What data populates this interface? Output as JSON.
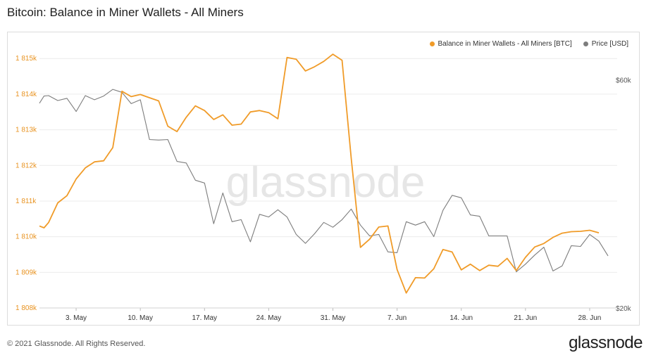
{
  "title": "Bitcoin: Balance in Miner Wallets - All Miners",
  "footer": {
    "copyright": "© 2021 Glassnode. All Rights Reserved.",
    "logo": "glassnode"
  },
  "watermark": "glassnode",
  "colors": {
    "balance": "#f09b28",
    "price": "#7d7d7d",
    "grid": "#ececec"
  },
  "chart_data": {
    "type": "line",
    "legend_position": "top-right",
    "grid": true,
    "x_axis": {
      "start": "2021-04-29",
      "end": "2021-07-01",
      "ticks": [
        "3. May",
        "10. May",
        "17. May",
        "24. May",
        "31. May",
        "7. Jun",
        "14. Jun",
        "21. Jun",
        "28. Jun"
      ],
      "tick_dates": [
        "2021-05-03",
        "2021-05-10",
        "2021-05-17",
        "2021-05-24",
        "2021-05-31",
        "2021-06-07",
        "2021-06-14",
        "2021-06-21",
        "2021-06-28"
      ]
    },
    "y_left": {
      "ylim": [
        1808000,
        1815300
      ],
      "ticks": [
        "1 808k",
        "1 809k",
        "1 810k",
        "1 811k",
        "1 812k",
        "1 813k",
        "1 814k",
        "1 815k"
      ],
      "tick_values": [
        1808000,
        1809000,
        1810000,
        1811000,
        1812000,
        1813000,
        1814000,
        1815000
      ]
    },
    "y_right": {
      "scale": "log",
      "ylim": [
        20000,
        70000
      ],
      "ticks": [
        "$20k",
        "$60k"
      ],
      "tick_values": [
        20000,
        60000
      ]
    },
    "series": [
      {
        "name": "Balance in Miner Wallets - All Miners [BTC]",
        "axis": "left",
        "points": [
          [
            "2021-04-29",
            1810300
          ],
          [
            "2021-04-29T12:00",
            1810250
          ],
          [
            "2021-04-30",
            1810400
          ],
          [
            "2021-05-01",
            1810950
          ],
          [
            "2021-05-02",
            1811150
          ],
          [
            "2021-05-03",
            1811620
          ],
          [
            "2021-05-04",
            1811930
          ],
          [
            "2021-05-05",
            1812100
          ],
          [
            "2021-05-06",
            1812130
          ],
          [
            "2021-05-07",
            1812500
          ],
          [
            "2021-05-08",
            1814080
          ],
          [
            "2021-05-09",
            1813930
          ],
          [
            "2021-05-10",
            1813990
          ],
          [
            "2021-05-11",
            1813900
          ],
          [
            "2021-05-12",
            1813810
          ],
          [
            "2021-05-13",
            1813100
          ],
          [
            "2021-05-14",
            1812950
          ],
          [
            "2021-05-15",
            1813350
          ],
          [
            "2021-05-16",
            1813670
          ],
          [
            "2021-05-17",
            1813540
          ],
          [
            "2021-05-18",
            1813290
          ],
          [
            "2021-05-19",
            1813420
          ],
          [
            "2021-05-20",
            1813130
          ],
          [
            "2021-05-21",
            1813160
          ],
          [
            "2021-05-22",
            1813500
          ],
          [
            "2021-05-23",
            1813540
          ],
          [
            "2021-05-24",
            1813480
          ],
          [
            "2021-05-25",
            1813310
          ],
          [
            "2021-05-26",
            1815030
          ],
          [
            "2021-05-27",
            1814980
          ],
          [
            "2021-05-28",
            1814650
          ],
          [
            "2021-05-29",
            1814770
          ],
          [
            "2021-05-30",
            1814920
          ],
          [
            "2021-05-31",
            1815120
          ],
          [
            "2021-06-01",
            1814950
          ],
          [
            "2021-06-02",
            1812200
          ],
          [
            "2021-06-03",
            1809700
          ],
          [
            "2021-06-04",
            1809930
          ],
          [
            "2021-06-05",
            1810270
          ],
          [
            "2021-06-06",
            1810300
          ],
          [
            "2021-06-07",
            1809080
          ],
          [
            "2021-06-08",
            1808420
          ],
          [
            "2021-06-09",
            1808850
          ],
          [
            "2021-06-10",
            1808840
          ],
          [
            "2021-06-11",
            1809100
          ],
          [
            "2021-06-12",
            1809640
          ],
          [
            "2021-06-13",
            1809570
          ],
          [
            "2021-06-14",
            1809070
          ],
          [
            "2021-06-15",
            1809230
          ],
          [
            "2021-06-16",
            1809050
          ],
          [
            "2021-06-17",
            1809200
          ],
          [
            "2021-06-18",
            1809170
          ],
          [
            "2021-06-19",
            1809390
          ],
          [
            "2021-06-20",
            1809050
          ],
          [
            "2021-06-21",
            1809420
          ],
          [
            "2021-06-22",
            1809710
          ],
          [
            "2021-06-23",
            1809810
          ],
          [
            "2021-06-24",
            1809980
          ],
          [
            "2021-06-25",
            1810100
          ],
          [
            "2021-06-26",
            1810140
          ],
          [
            "2021-06-27",
            1810150
          ],
          [
            "2021-06-28",
            1810180
          ],
          [
            "2021-06-29",
            1810110
          ]
        ]
      },
      {
        "name": "Price [USD]",
        "axis": "right",
        "points": [
          [
            "2021-04-29",
            53600
          ],
          [
            "2021-04-29T12:00",
            55500
          ],
          [
            "2021-04-30",
            55600
          ],
          [
            "2021-05-01",
            54300
          ],
          [
            "2021-05-02",
            54900
          ],
          [
            "2021-05-03",
            51500
          ],
          [
            "2021-05-04",
            55600
          ],
          [
            "2021-05-05",
            54500
          ],
          [
            "2021-05-06",
            55500
          ],
          [
            "2021-05-07",
            57300
          ],
          [
            "2021-05-08",
            56500
          ],
          [
            "2021-05-09",
            53500
          ],
          [
            "2021-05-10",
            54500
          ],
          [
            "2021-05-11",
            45000
          ],
          [
            "2021-05-12",
            44900
          ],
          [
            "2021-05-13",
            45000
          ],
          [
            "2021-05-14",
            40500
          ],
          [
            "2021-05-15",
            40200
          ],
          [
            "2021-05-16",
            37000
          ],
          [
            "2021-05-17",
            36500
          ],
          [
            "2021-05-18",
            30000
          ],
          [
            "2021-05-19",
            34800
          ],
          [
            "2021-05-20",
            30300
          ],
          [
            "2021-05-21",
            30600
          ],
          [
            "2021-05-22",
            27500
          ],
          [
            "2021-05-23",
            31400
          ],
          [
            "2021-05-24",
            31000
          ],
          [
            "2021-05-25",
            32100
          ],
          [
            "2021-05-26",
            31000
          ],
          [
            "2021-05-27",
            28500
          ],
          [
            "2021-05-28",
            27300
          ],
          [
            "2021-05-29",
            28600
          ],
          [
            "2021-05-30",
            30200
          ],
          [
            "2021-05-31",
            29500
          ],
          [
            "2021-06-01",
            30600
          ],
          [
            "2021-06-02",
            32200
          ],
          [
            "2021-06-03",
            29800
          ],
          [
            "2021-06-04",
            28300
          ],
          [
            "2021-06-05",
            28500
          ],
          [
            "2021-06-06",
            26200
          ],
          [
            "2021-06-07",
            26100
          ],
          [
            "2021-06-08",
            30300
          ],
          [
            "2021-06-09",
            29800
          ],
          [
            "2021-06-10",
            30300
          ],
          [
            "2021-06-11",
            28200
          ],
          [
            "2021-06-12",
            32000
          ],
          [
            "2021-06-13",
            34400
          ],
          [
            "2021-06-14",
            34000
          ],
          [
            "2021-06-15",
            31300
          ],
          [
            "2021-06-16",
            31100
          ],
          [
            "2021-06-17",
            28300
          ],
          [
            "2021-06-18",
            28300
          ],
          [
            "2021-06-19",
            28300
          ],
          [
            "2021-06-20",
            23800
          ],
          [
            "2021-06-21",
            24700
          ],
          [
            "2021-06-22",
            25800
          ],
          [
            "2021-06-23",
            26800
          ],
          [
            "2021-06-24",
            23900
          ],
          [
            "2021-06-25",
            24500
          ],
          [
            "2021-06-26",
            27000
          ],
          [
            "2021-06-27",
            26900
          ],
          [
            "2021-06-28",
            28500
          ],
          [
            "2021-06-29",
            27600
          ],
          [
            "2021-06-30",
            25700
          ]
        ]
      }
    ]
  }
}
